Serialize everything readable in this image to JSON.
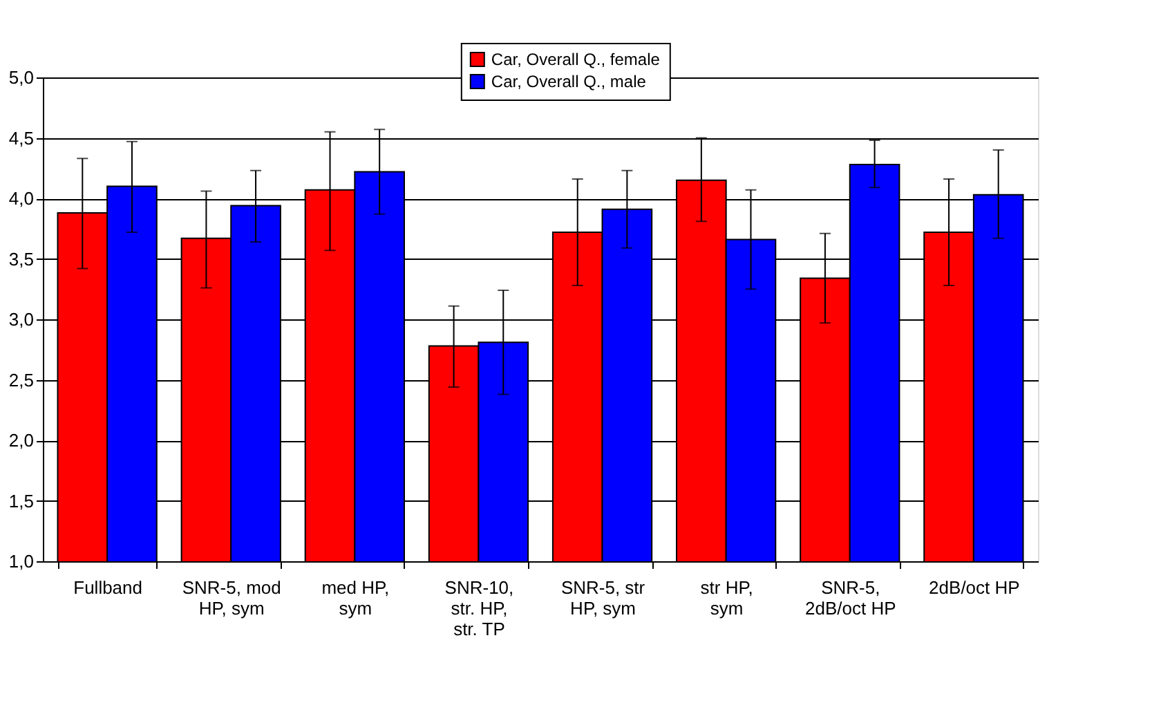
{
  "chart_data": {
    "type": "bar",
    "categories": [
      "Fullband",
      "SNR-5, mod HP, sym",
      "med HP, sym",
      "SNR-10, str. HP, str. TP",
      "SNR-5, str HP, sym",
      "str HP, sym",
      "SNR-5, 2dB/oct HP",
      "2dB/oct HP"
    ],
    "series": [
      {
        "name": "Car, Overall Q., female",
        "color": "#ff0000",
        "values": [
          3.88,
          3.67,
          4.07,
          2.78,
          3.72,
          4.15,
          3.34,
          3.72
        ],
        "errors": [
          [
            3.42,
            4.33
          ],
          [
            3.26,
            4.06
          ],
          [
            3.57,
            4.55
          ],
          [
            2.44,
            3.11
          ],
          [
            3.28,
            4.16
          ],
          [
            3.81,
            4.5
          ],
          [
            2.97,
            3.71
          ],
          [
            3.28,
            4.16
          ]
        ]
      },
      {
        "name": "Car, Overall Q., male",
        "color": "#0000ff",
        "values": [
          4.1,
          3.94,
          4.22,
          2.81,
          3.91,
          3.66,
          4.28,
          4.03
        ],
        "errors": [
          [
            3.72,
            4.47
          ],
          [
            3.64,
            4.23
          ],
          [
            3.87,
            4.57
          ],
          [
            2.38,
            3.24
          ],
          [
            3.59,
            4.23
          ],
          [
            3.25,
            4.07
          ],
          [
            4.09,
            4.48
          ],
          [
            3.67,
            4.4
          ]
        ]
      }
    ],
    "ylim": [
      1.0,
      5.0
    ],
    "yticks": [
      {
        "value": 1.0,
        "label": "1,0"
      },
      {
        "value": 1.5,
        "label": "1,5"
      },
      {
        "value": 2.0,
        "label": "2,0"
      },
      {
        "value": 2.5,
        "label": "2,5"
      },
      {
        "value": 3.0,
        "label": "3,0"
      },
      {
        "value": 3.5,
        "label": "3,5"
      },
      {
        "value": 4.0,
        "label": "4,0"
      },
      {
        "value": 4.5,
        "label": "4,5"
      },
      {
        "value": 5.0,
        "label": "5,0"
      }
    ],
    "grid": "y",
    "legend": "top"
  }
}
